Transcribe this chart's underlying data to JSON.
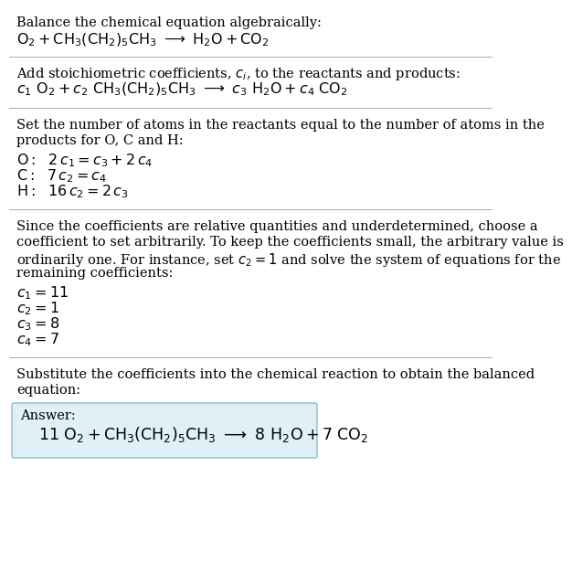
{
  "title": "Balance the chemical equation algebraically:",
  "line1": "$\\mathrm{O}_2 + \\mathrm{CH}_3(\\mathrm{CH}_2)_5\\mathrm{CH}_3 \\ \\longrightarrow \\ \\mathrm{H}_2\\mathrm{O} + \\mathrm{CO}_2$",
  "section2_header": "Add stoichiometric coefficients, $c_i$, to the reactants and products:",
  "section2_eq": "$c_1\\ \\mathrm{O}_2 + c_2\\ \\mathrm{CH}_3(\\mathrm{CH}_2)_5\\mathrm{CH}_3 \\ \\longrightarrow \\ c_3\\ \\mathrm{H}_2\\mathrm{O} + c_4\\ \\mathrm{CO}_2$",
  "section3_header1": "Set the number of atoms in the reactants equal to the number of atoms in the",
  "section3_header2": "products for O, C and H:",
  "section3_O": "$\\mathrm{O:} \\ \\ 2\\,c_1 = c_3 + 2\\,c_4$",
  "section3_C": "$\\mathrm{C:} \\ \\ 7\\,c_2 = c_4$",
  "section3_H": "$\\mathrm{H:} \\ \\ 16\\,c_2 = 2\\,c_3$",
  "section4_header1": "Since the coefficients are relative quantities and underdetermined, choose a",
  "section4_header2": "coefficient to set arbitrarily. To keep the coefficients small, the arbitrary value is",
  "section4_header3": "ordinarily one. For instance, set $c_2 = 1$ and solve the system of equations for the",
  "section4_header4": "remaining coefficients:",
  "section4_c1": "$c_1 = 11$",
  "section4_c2": "$c_2 = 1$",
  "section4_c3": "$c_3 = 8$",
  "section4_c4": "$c_4 = 7$",
  "section5_header1": "Substitute the coefficients into the chemical reaction to obtain the balanced",
  "section5_header2": "equation:",
  "answer_label": "Answer:",
  "answer_eq": "$11\\ \\mathrm{O}_2 + \\mathrm{CH}_3(\\mathrm{CH}_2)_5\\mathrm{CH}_3 \\ \\longrightarrow \\ 8\\ \\mathrm{H}_2\\mathrm{O} + 7\\ \\mathrm{CO}_2$",
  "bg_color": "#ffffff",
  "text_color": "#000000",
  "answer_box_facecolor": "#dff0f7",
  "answer_box_edgecolor": "#8bbccc",
  "separator_color": "#aaaaaa",
  "body_fontsize": 10.5,
  "eq_fontsize": 11.5,
  "answer_fontsize": 12.5
}
